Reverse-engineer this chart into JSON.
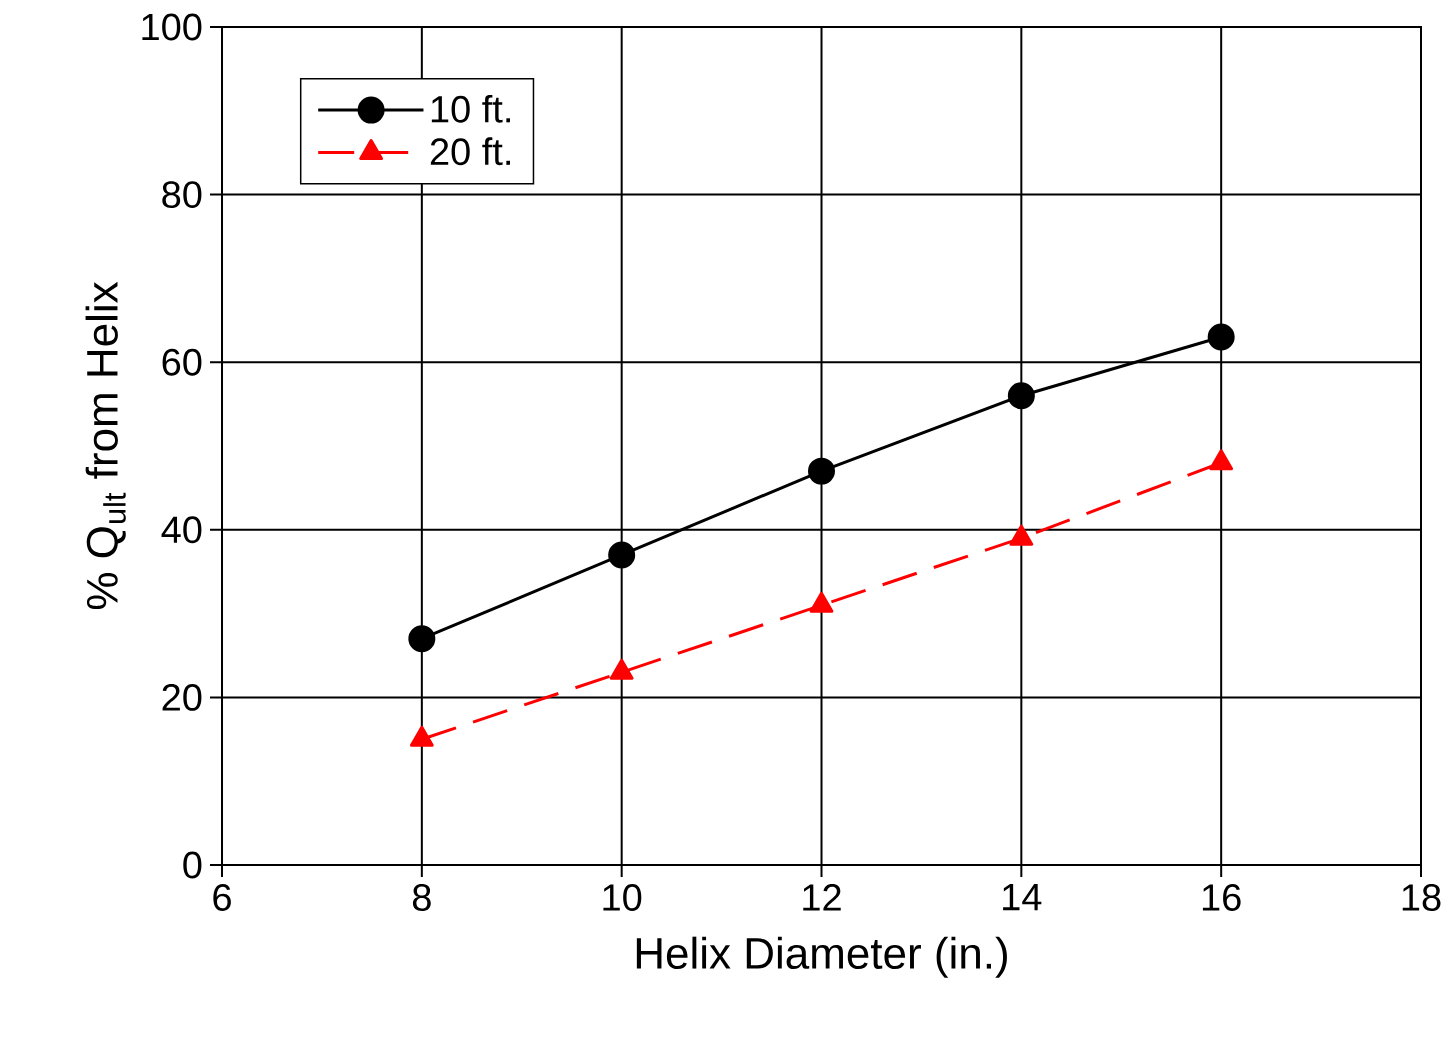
{
  "chart_data": {
    "type": "line",
    "xlabel": "Helix Diameter (in.)",
    "ylabel": "% Q$_{ult}$ from Helix",
    "x": [
      8,
      10,
      12,
      14,
      16
    ],
    "series": [
      {
        "name": "10 ft.",
        "color": "#000000",
        "values": [
          27,
          37,
          47,
          56,
          63
        ],
        "marker": "circle",
        "line_style": "solid"
      },
      {
        "name": "20 ft.",
        "color": "#ff0000",
        "values": [
          15,
          23,
          31,
          39,
          48
        ],
        "marker": "triangle",
        "line_style": "dashed"
      }
    ],
    "xlim": [
      6,
      18
    ],
    "xticks": [
      6,
      8,
      10,
      12,
      14,
      16,
      18
    ],
    "ylim": [
      0,
      100
    ],
    "yticks": [
      0,
      20,
      40,
      60,
      80,
      100
    ],
    "grid": true,
    "legend": "top left"
  }
}
